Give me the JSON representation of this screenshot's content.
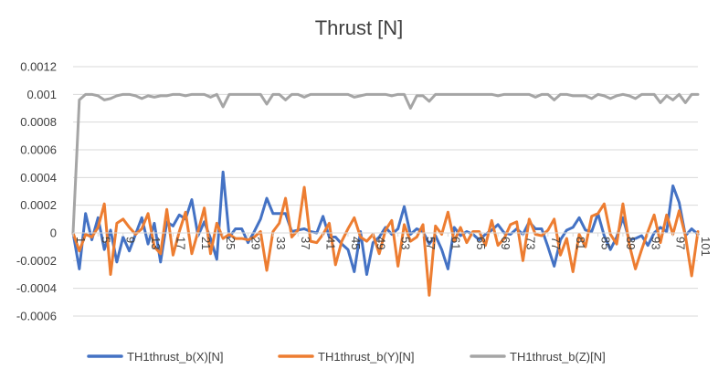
{
  "chart_data": {
    "type": "line",
    "title": "Thrust [N]",
    "xlabel": "",
    "ylabel": "",
    "ylim": [
      -0.0006,
      0.0012
    ],
    "y_ticks": [
      0.0012,
      0.001,
      0.0008,
      0.0006,
      0.0004,
      0.0002,
      0,
      -0.0002,
      -0.0004,
      -0.0006
    ],
    "y_tick_labels": [
      "0.0012",
      "0.001",
      "0.0008",
      "0.0006",
      "0.0004",
      "0.0002",
      "0",
      "-0.0002",
      "-0.0004",
      "-0.0006"
    ],
    "x_range": [
      1,
      101
    ],
    "x_ticks": [
      1,
      5,
      9,
      13,
      17,
      21,
      25,
      29,
      33,
      37,
      41,
      45,
      49,
      53,
      57,
      61,
      65,
      69,
      73,
      77,
      81,
      85,
      89,
      93,
      97,
      101
    ],
    "x_tick_labels": [
      "1",
      "5",
      "9",
      "13",
      "17",
      "21",
      "25",
      "29",
      "33",
      "37",
      "41",
      "45",
      "49",
      "53",
      "57",
      "61",
      "65",
      "69",
      "73",
      "77",
      "81",
      "85",
      "89",
      "93",
      "97",
      "101"
    ],
    "grid": true,
    "legend_position": "bottom",
    "series": [
      {
        "name": "TH1thrust_b(X)[N]",
        "color": "#4472C4",
        "values": [
          0,
          -0.00026,
          0.00014,
          -5e-05,
          0.00011,
          -0.00012,
          2e-05,
          -0.00021,
          -3e-05,
          -0.00013,
          -1e-05,
          0.00011,
          -8e-05,
          7e-05,
          -0.00021,
          8e-05,
          5e-05,
          0.00013,
          0.0001,
          0.00024,
          -2e-05,
          8e-05,
          -4e-05,
          -0.00019,
          0.00044,
          -3e-05,
          3e-05,
          3e-05,
          -7e-05,
          1e-05,
          0.0001,
          0.00025,
          0.00014,
          0.00014,
          0.00014,
          1e-05,
          2e-05,
          3e-05,
          1e-05,
          0,
          0.00012,
          -3e-05,
          -3e-05,
          -8e-05,
          -0.00012,
          -0.00028,
          1e-05,
          -0.0003,
          -7e-05,
          -3e-05,
          4e-05,
          -1e-05,
          3e-05,
          0.00019,
          -1e-05,
          3e-05,
          1e-05,
          -8e-05,
          -2e-05,
          -0.00012,
          -0.00026,
          4e-05,
          -2e-05,
          1e-05,
          -1e-05,
          -5e-05,
          -1e-05,
          2e-05,
          6e-05,
          0,
          -1e-05,
          3e-05,
          -1e-05,
          8e-05,
          3e-05,
          3e-05,
          -0.0001,
          -0.00024,
          -5e-05,
          2e-05,
          4e-05,
          0.00011,
          2e-05,
          1e-05,
          0.00014,
          -2e-05,
          -0.00012,
          -3e-05,
          0.00011,
          -5e-05,
          -4e-05,
          -2e-05,
          -9e-05,
          0,
          4e-05,
          1e-05,
          0.00034,
          0.00022,
          -2e-05,
          3e-05,
          -1e-05
        ]
      },
      {
        "name": "TH1thrust_b(Y)[N]",
        "color": "#ED7D31",
        "values": [
          0,
          -0.00013,
          -1e-05,
          -3e-05,
          4e-05,
          0.00021,
          -0.0003,
          7e-05,
          0.0001,
          4e-05,
          -1e-05,
          3e-05,
          0.00014,
          -0.0001,
          -0.00015,
          0.00017,
          -0.00016,
          1e-05,
          0.00015,
          -0.00015,
          1e-05,
          0.00018,
          -0.00015,
          7e-05,
          -4e-05,
          -1e-05,
          -4e-05,
          -4e-05,
          -5e-05,
          -3e-05,
          1e-05,
          -0.00027,
          1e-05,
          7e-05,
          0.00025,
          -3e-05,
          2e-05,
          0.00033,
          -6e-05,
          -7e-05,
          -1e-05,
          7e-05,
          -0.00023,
          -6e-05,
          3e-05,
          0.00011,
          -3e-05,
          -6e-05,
          -1e-05,
          -0.00015,
          2e-05,
          9e-05,
          -0.00024,
          6e-05,
          -6e-05,
          -3e-05,
          6e-05,
          -0.00045,
          5e-05,
          -1e-05,
          0.00015,
          -6e-05,
          4e-05,
          -7e-05,
          1e-05,
          1e-05,
          -9e-05,
          9e-05,
          -9e-05,
          -4e-05,
          6e-05,
          8e-05,
          -0.0002,
          0.0001,
          -1e-05,
          -2e-05,
          2e-05,
          0.0001,
          -0.00016,
          -4e-05,
          -0.00028,
          -1e-05,
          -0.0001,
          0.00012,
          0.00014,
          0.00021,
          -1e-05,
          -8e-05,
          0.00021,
          -8e-05,
          -0.00026,
          -0.00012,
          1e-05,
          0.00013,
          -7e-05,
          0.00013,
          -1e-05,
          0.00016,
          -2e-05,
          -0.00031,
          1e-05
        ]
      },
      {
        "name": "TH1thrust_b(Z)[N]",
        "color": "#A5A5A5",
        "values": [
          0,
          0.00096,
          0.001,
          0.001,
          0.00099,
          0.00096,
          0.00097,
          0.00099,
          0.001,
          0.001,
          0.00099,
          0.00097,
          0.00099,
          0.00098,
          0.00099,
          0.00099,
          0.001,
          0.001,
          0.00099,
          0.001,
          0.001,
          0.001,
          0.00098,
          0.001,
          0.00091,
          0.001,
          0.001,
          0.001,
          0.001,
          0.001,
          0.001,
          0.00093,
          0.001,
          0.001,
          0.00096,
          0.001,
          0.001,
          0.00098,
          0.001,
          0.001,
          0.001,
          0.001,
          0.001,
          0.001,
          0.001,
          0.00098,
          0.00099,
          0.001,
          0.001,
          0.001,
          0.001,
          0.00099,
          0.001,
          0.001,
          0.0009,
          0.00099,
          0.00099,
          0.00095,
          0.001,
          0.001,
          0.001,
          0.001,
          0.001,
          0.001,
          0.001,
          0.001,
          0.001,
          0.001,
          0.00099,
          0.001,
          0.001,
          0.001,
          0.001,
          0.001,
          0.00098,
          0.001,
          0.001,
          0.00096,
          0.001,
          0.001,
          0.00099,
          0.00099,
          0.00099,
          0.00097,
          0.001,
          0.00099,
          0.00097,
          0.00099,
          0.001,
          0.00099,
          0.00097,
          0.001,
          0.001,
          0.001,
          0.00094,
          0.00099,
          0.00096,
          0.001,
          0.00094,
          0.001,
          0.001
        ]
      }
    ]
  }
}
